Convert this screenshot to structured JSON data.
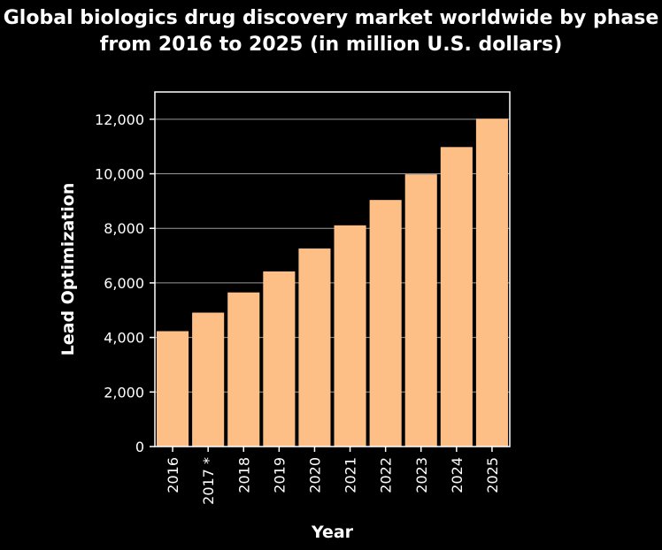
{
  "chart_data": {
    "type": "bar",
    "title": "Global biologics drug discovery market worldwide by phase from 2016 to 2025 (in million U.S. dollars)",
    "xlabel": "Year",
    "ylabel": "Lead Optimization",
    "categories": [
      "2016",
      "2017 *",
      "2018",
      "2019",
      "2020",
      "2021",
      "2022",
      "2023",
      "2024",
      "2025"
    ],
    "values": [
      4230,
      4910,
      5650,
      6420,
      7260,
      8110,
      9040,
      9980,
      10980,
      12020
    ],
    "ylim": [
      0,
      13000
    ],
    "yticks": [
      0,
      2000,
      4000,
      6000,
      8000,
      10000,
      12000
    ],
    "ytick_labels": [
      "0",
      "2,000",
      "4,000",
      "6,000",
      "8,000",
      "10,000",
      "12,000"
    ],
    "grid": true,
    "bar_color": "#fdbf86",
    "background": "#000000",
    "text_color": "#ffffff"
  }
}
